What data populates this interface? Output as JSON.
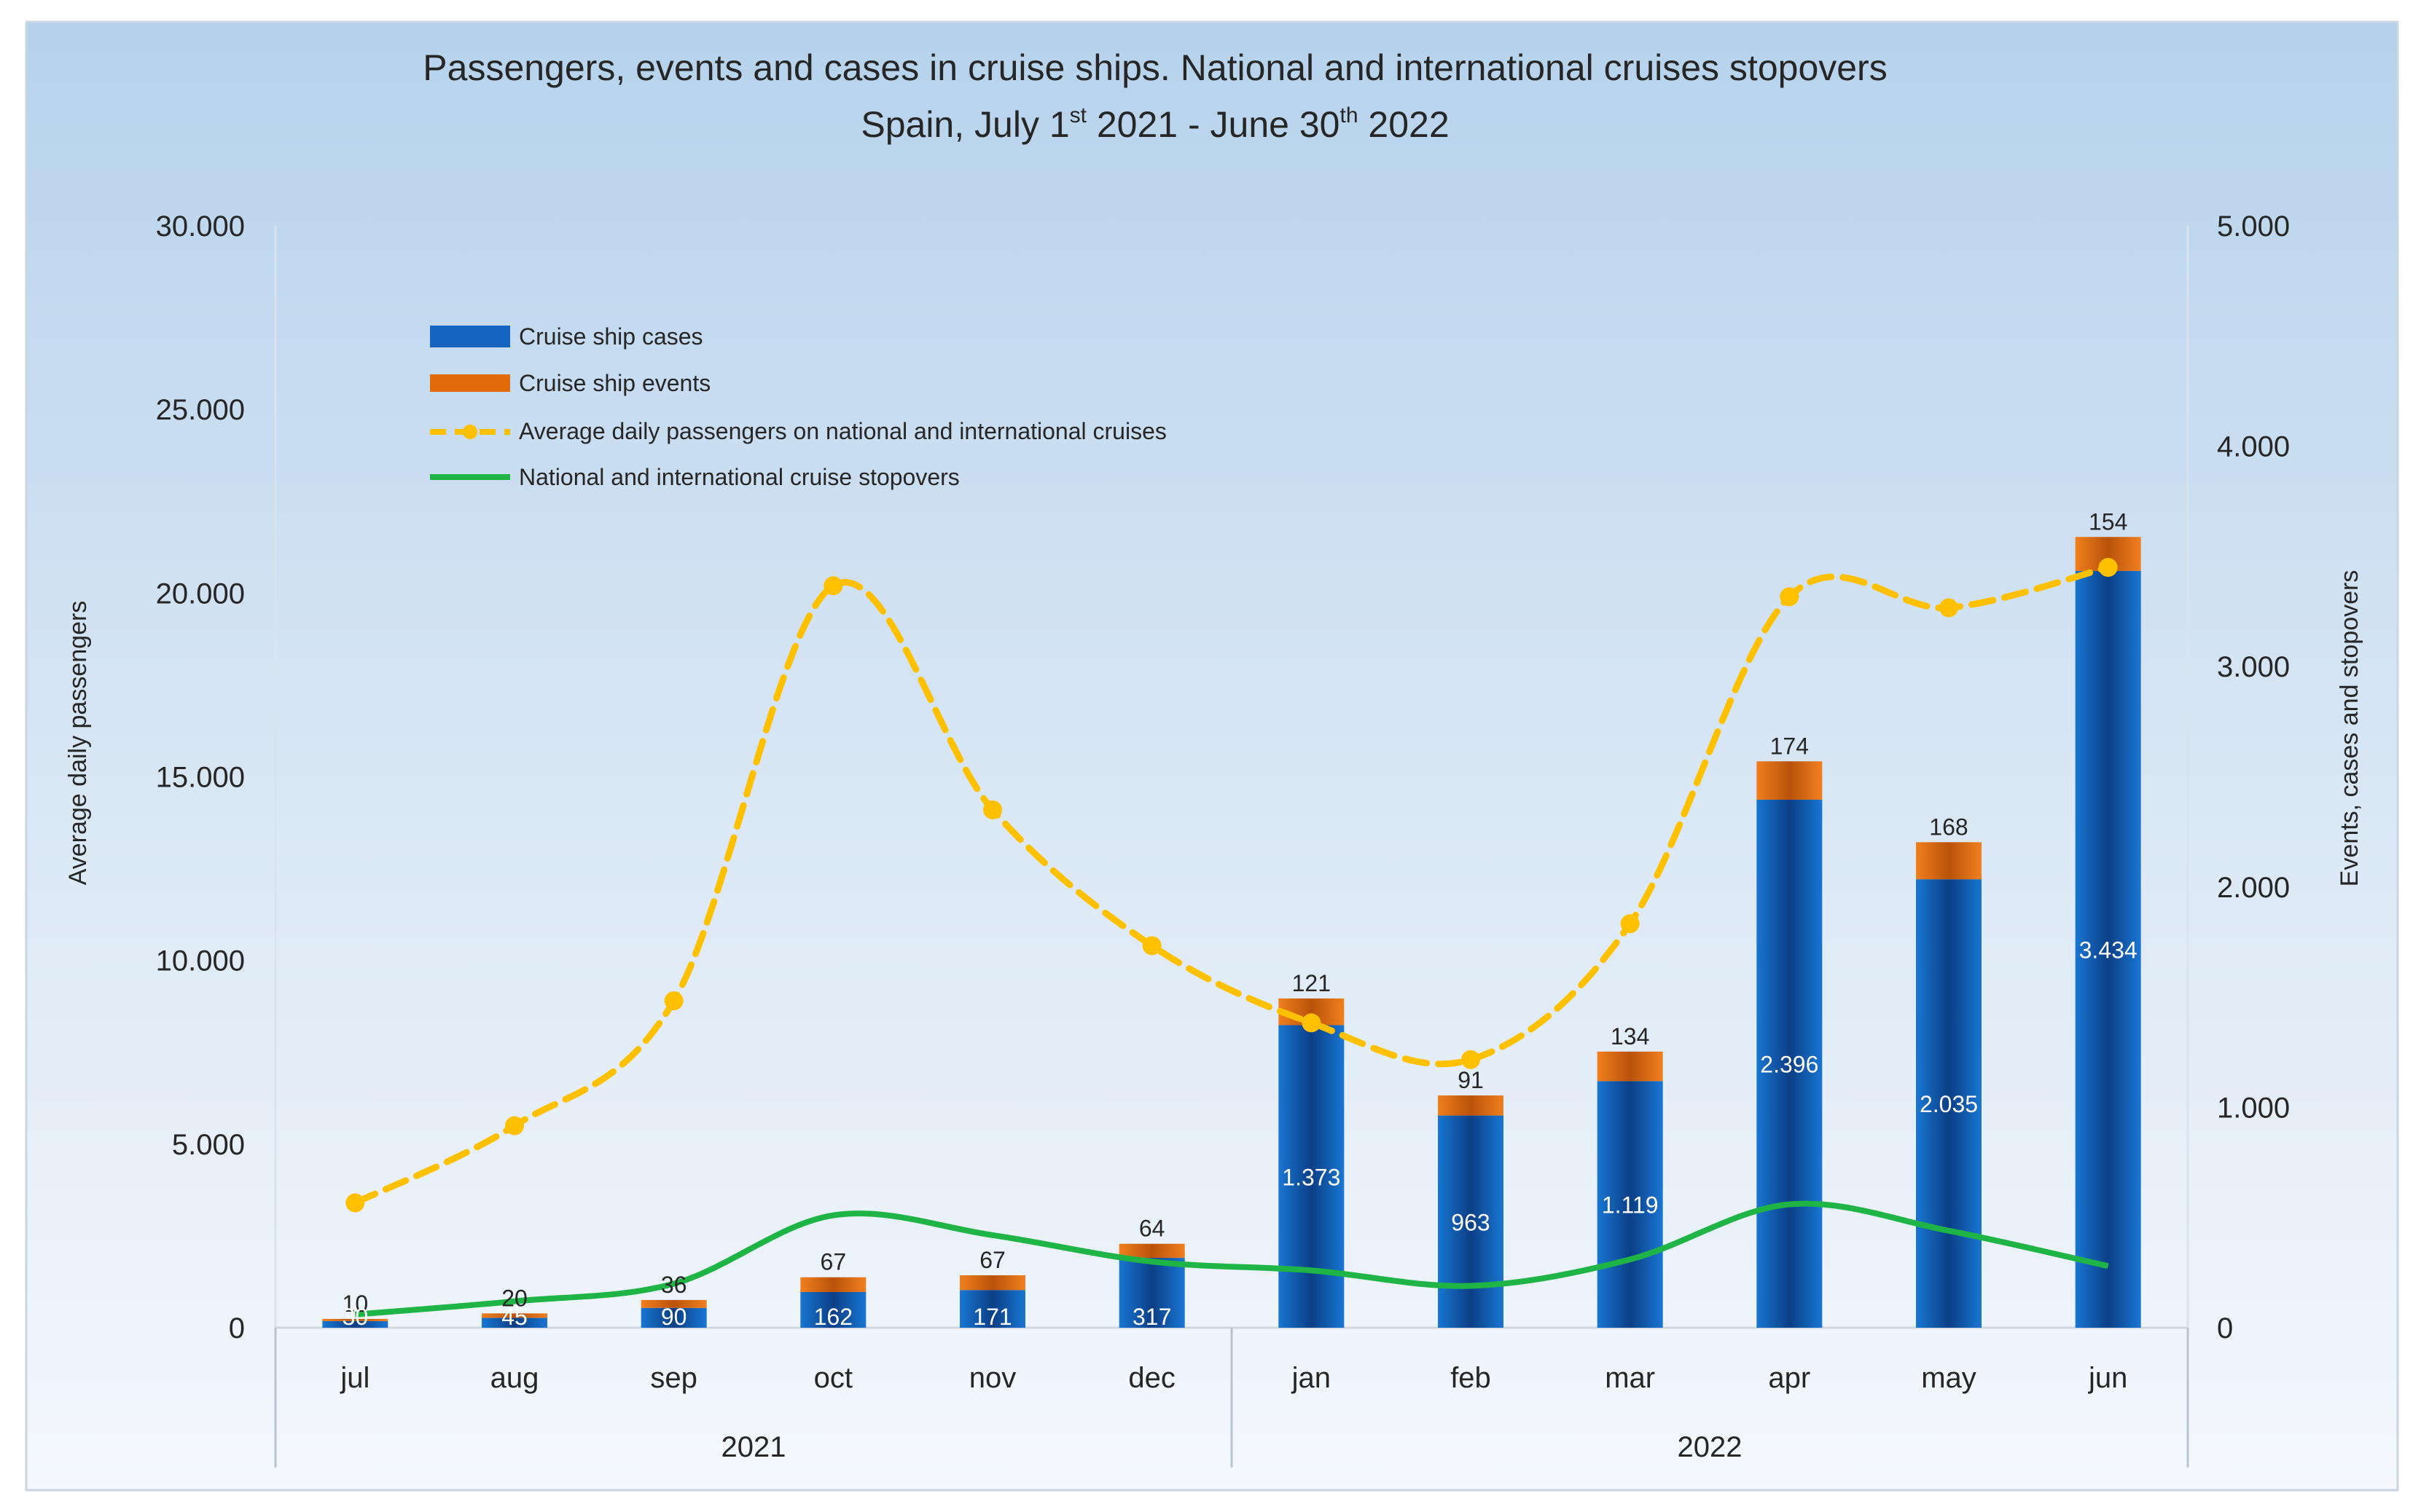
{
  "chart_data": {
    "type": "bar",
    "title_line1": "Passengers, events and cases in cruise ships. National and international cruises stopovers",
    "title_line2_parts": [
      "Spain, July 1",
      "st",
      " 2021 - June 30",
      "th",
      " 2022"
    ],
    "categories": [
      "jul",
      "aug",
      "sep",
      "oct",
      "nov",
      "dec",
      "jan",
      "feb",
      "mar",
      "apr",
      "may",
      "jun"
    ],
    "years": [
      {
        "label": "2021",
        "span": [
          0,
          5
        ]
      },
      {
        "label": "2022",
        "span": [
          6,
          11
        ]
      }
    ],
    "y_left": {
      "label": "Average daily passengers",
      "ylim": [
        0,
        30000
      ],
      "ticks": [
        0,
        5000,
        10000,
        15000,
        20000,
        25000,
        30000
      ],
      "tick_labels": [
        "0",
        "5.000",
        "10.000",
        "15.000",
        "20.000",
        "25.000",
        "30.000"
      ]
    },
    "y_right": {
      "label": "Events, cases and stopovers",
      "ylim": [
        0,
        5000
      ],
      "ticks": [
        0,
        1000,
        2000,
        3000,
        4000,
        5000
      ],
      "tick_labels": [
        "0",
        "1.000",
        "2.000",
        "3.000",
        "4.000",
        "5.000"
      ]
    },
    "series": [
      {
        "name": "Cruise ship cases",
        "kind": "bar",
        "axis": "right",
        "color": "#1565c0",
        "values": [
          30,
          45,
          90,
          162,
          171,
          317,
          1373,
          963,
          1119,
          2396,
          2035,
          3434
        ],
        "labels": [
          "30",
          "45",
          "90",
          "162",
          "171",
          "317",
          "1.373",
          "963",
          "1.119",
          "2.396",
          "2.035",
          "3.434"
        ]
      },
      {
        "name": "Cruise ship events",
        "kind": "bar",
        "axis": "right",
        "color": "#e36c0a",
        "values": [
          10,
          20,
          36,
          67,
          67,
          64,
          121,
          91,
          134,
          174,
          168,
          154
        ],
        "labels": [
          "10",
          "20",
          "36",
          "67",
          "67",
          "64",
          "121",
          "91",
          "134",
          "174",
          "168",
          "154"
        ]
      },
      {
        "name": "Average daily passengers on national and international cruises",
        "kind": "line",
        "axis": "left",
        "color": "#ffc000",
        "values": [
          3400,
          5500,
          8900,
          20200,
          14100,
          10400,
          8300,
          7300,
          11000,
          19900,
          19600,
          20700
        ]
      },
      {
        "name": "National and international cruise stopovers",
        "kind": "line",
        "axis": "right",
        "color": "#1fb546",
        "values": [
          60,
          120,
          200,
          510,
          420,
          300,
          260,
          190,
          310,
          560,
          440,
          280
        ]
      }
    ],
    "legend_position": "top-left inside plot"
  }
}
